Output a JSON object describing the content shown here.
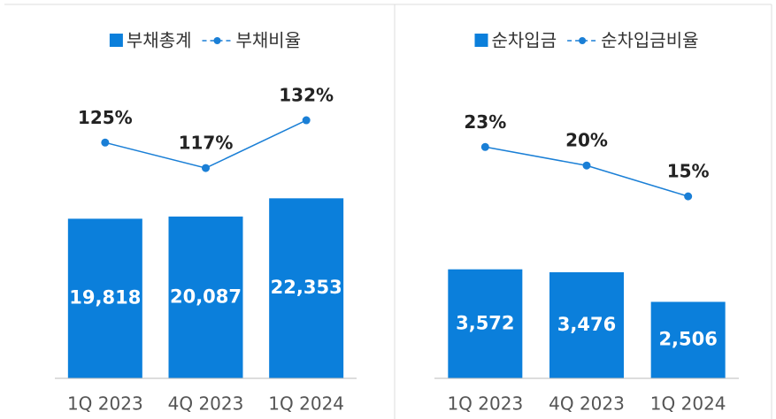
{
  "chart_data": [
    {
      "type": "bar",
      "categories": [
        "1Q 2023",
        "4Q 2023",
        "1Q 2024"
      ],
      "series": [
        {
          "name": "부채총계",
          "color": "#0b7fdb",
          "values": [
            19818,
            20087,
            22353
          ],
          "value_labels": [
            "19,818",
            "20,087",
            "22,353"
          ]
        },
        {
          "name": "부채비율",
          "type": "line",
          "axis": "y2",
          "color": "#1a7fd6",
          "values": [
            125,
            117,
            132
          ],
          "value_labels": [
            "125%",
            "117%",
            "132%"
          ]
        }
      ],
      "ylim": [
        0,
        36000
      ],
      "y2lim": [
        51,
        142
      ]
    },
    {
      "type": "bar",
      "categories": [
        "1Q 2023",
        "4Q 2023",
        "1Q 2024"
      ],
      "series": [
        {
          "name": "순차입금",
          "color": "#0b7fdb",
          "values": [
            3572,
            3476,
            2506
          ],
          "value_labels": [
            "3,572",
            "3,476",
            "2,506"
          ]
        },
        {
          "name": "순차입금비율",
          "type": "line",
          "axis": "y2",
          "color": "#1a7fd6",
          "values": [
            23,
            20,
            15
          ],
          "value_labels": [
            "23%",
            "20%",
            "15%"
          ]
        }
      ],
      "ylim": [
        0,
        9500
      ],
      "y2lim": [
        -14.5,
        32.5
      ]
    }
  ]
}
